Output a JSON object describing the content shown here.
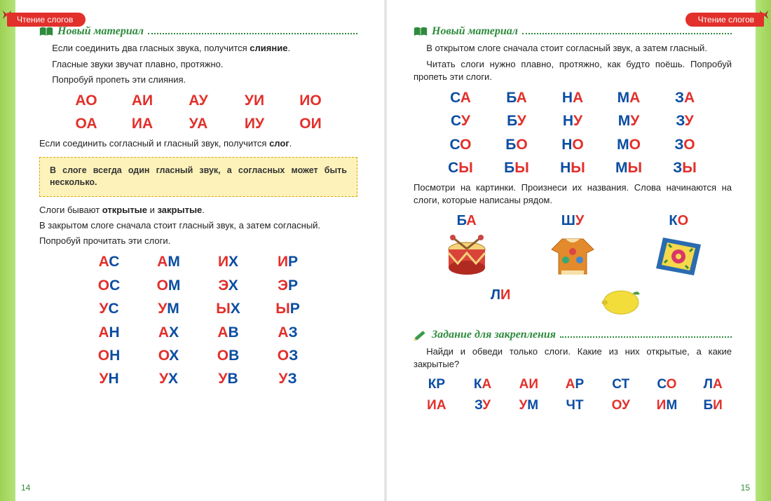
{
  "colors": {
    "vowel": "#e2302b",
    "consonant": "#0b4da2",
    "accent_green": "#2e8b3d",
    "edge_green": "#9cd154",
    "tab_red": "#e2302b",
    "rule_bg": "#fdf3ba",
    "rule_border": "#d7a60f"
  },
  "typography": {
    "body_fontsize": 13,
    "title_fontsize": 16,
    "syll_fontsize": 21,
    "syll_small_fontsize": 19
  },
  "tabs": {
    "left": "Чтение слогов",
    "right": "Чтение слогов"
  },
  "left": {
    "title1": "Новый материал",
    "p1": "Если соединить два гласных звука, получится ",
    "p1_bold": "слияние",
    "p1_end": ".",
    "p2": "Гласные звуки звучат плавно, протяжно.",
    "p3": "Попробуй пропеть эти слияния.",
    "grid1": {
      "cols": 5,
      "rows": 2,
      "cells": [
        [
          [
            "А",
            "v"
          ],
          [
            "О",
            "v"
          ]
        ],
        [
          [
            "А",
            "v"
          ],
          [
            "И",
            "v"
          ]
        ],
        [
          [
            "А",
            "v"
          ],
          [
            "У",
            "v"
          ]
        ],
        [
          [
            "У",
            "v"
          ],
          [
            "И",
            "v"
          ]
        ],
        [
          [
            "И",
            "v"
          ],
          [
            "О",
            "v"
          ]
        ],
        [
          [
            "О",
            "v"
          ],
          [
            "А",
            "v"
          ]
        ],
        [
          [
            "И",
            "v"
          ],
          [
            "А",
            "v"
          ]
        ],
        [
          [
            "У",
            "v"
          ],
          [
            "А",
            "v"
          ]
        ],
        [
          [
            "И",
            "v"
          ],
          [
            "У",
            "v"
          ]
        ],
        [
          [
            "О",
            "v"
          ],
          [
            "И",
            "v"
          ]
        ]
      ]
    },
    "p4a": "Если соединить согласный и гласный звук, получится ",
    "p4_bold": "слог",
    "p4b": ".",
    "rule": "В слоге всегда один гласный звук, а согласных может быть несколько.",
    "p5a": "Слоги бывают ",
    "p5_bold1": "открытые",
    "p5_mid": " и ",
    "p5_bold2": "закрытые",
    "p5b": ".",
    "p6": "В закрытом слоге сначала стоит гласный звук, а затем согласный.",
    "p7": "Попробуй прочитать эти слоги.",
    "grid2": {
      "cols": 4,
      "rows": 6,
      "cells": [
        [
          [
            "А",
            "v"
          ],
          [
            "С",
            "c"
          ]
        ],
        [
          [
            "А",
            "v"
          ],
          [
            "М",
            "c"
          ]
        ],
        [
          [
            "И",
            "v"
          ],
          [
            "Х",
            "c"
          ]
        ],
        [
          [
            "И",
            "v"
          ],
          [
            "Р",
            "c"
          ]
        ],
        [
          [
            "О",
            "v"
          ],
          [
            "С",
            "c"
          ]
        ],
        [
          [
            "О",
            "v"
          ],
          [
            "М",
            "c"
          ]
        ],
        [
          [
            "Э",
            "v"
          ],
          [
            "Х",
            "c"
          ]
        ],
        [
          [
            "Э",
            "v"
          ],
          [
            "Р",
            "c"
          ]
        ],
        [
          [
            "У",
            "v"
          ],
          [
            "С",
            "c"
          ]
        ],
        [
          [
            "У",
            "v"
          ],
          [
            "М",
            "c"
          ]
        ],
        [
          [
            "Ы",
            "v"
          ],
          [
            "Х",
            "c"
          ]
        ],
        [
          [
            "Ы",
            "v"
          ],
          [
            "Р",
            "c"
          ]
        ],
        [
          [
            "А",
            "v"
          ],
          [
            "Н",
            "c"
          ]
        ],
        [
          [
            "А",
            "v"
          ],
          [
            "Х",
            "c"
          ]
        ],
        [
          [
            "А",
            "v"
          ],
          [
            "В",
            "c"
          ]
        ],
        [
          [
            "А",
            "v"
          ],
          [
            "З",
            "c"
          ]
        ],
        [
          [
            "О",
            "v"
          ],
          [
            "Н",
            "c"
          ]
        ],
        [
          [
            "О",
            "v"
          ],
          [
            "Х",
            "c"
          ]
        ],
        [
          [
            "О",
            "v"
          ],
          [
            "В",
            "c"
          ]
        ],
        [
          [
            "О",
            "v"
          ],
          [
            "З",
            "c"
          ]
        ],
        [
          [
            "У",
            "v"
          ],
          [
            "Н",
            "c"
          ]
        ],
        [
          [
            "У",
            "v"
          ],
          [
            "Х",
            "c"
          ]
        ],
        [
          [
            "У",
            "v"
          ],
          [
            "В",
            "c"
          ]
        ],
        [
          [
            "У",
            "v"
          ],
          [
            "З",
            "c"
          ]
        ]
      ]
    },
    "pageNum": "14"
  },
  "right": {
    "title1": "Новый материал",
    "p1": "В открытом слоге сначала стоит согласный звук, а затем гласный.",
    "p2": "Читать слоги нужно плавно, протяжно, как будто поёшь. Попробуй пропеть эти слоги.",
    "grid1": {
      "cols": 5,
      "rows": 4,
      "cells": [
        [
          [
            "С",
            "c"
          ],
          [
            "А",
            "v"
          ]
        ],
        [
          [
            "Б",
            "c"
          ],
          [
            "А",
            "v"
          ]
        ],
        [
          [
            "Н",
            "c"
          ],
          [
            "А",
            "v"
          ]
        ],
        [
          [
            "М",
            "c"
          ],
          [
            "А",
            "v"
          ]
        ],
        [
          [
            "З",
            "c"
          ],
          [
            "А",
            "v"
          ]
        ],
        [
          [
            "С",
            "c"
          ],
          [
            "У",
            "v"
          ]
        ],
        [
          [
            "Б",
            "c"
          ],
          [
            "У",
            "v"
          ]
        ],
        [
          [
            "Н",
            "c"
          ],
          [
            "У",
            "v"
          ]
        ],
        [
          [
            "М",
            "c"
          ],
          [
            "У",
            "v"
          ]
        ],
        [
          [
            "З",
            "c"
          ],
          [
            "У",
            "v"
          ]
        ],
        [
          [
            "С",
            "c"
          ],
          [
            "О",
            "v"
          ]
        ],
        [
          [
            "Б",
            "c"
          ],
          [
            "О",
            "v"
          ]
        ],
        [
          [
            "Н",
            "c"
          ],
          [
            "О",
            "v"
          ]
        ],
        [
          [
            "М",
            "c"
          ],
          [
            "О",
            "v"
          ]
        ],
        [
          [
            "З",
            "c"
          ],
          [
            "О",
            "v"
          ]
        ],
        [
          [
            "С",
            "c"
          ],
          [
            "Ы",
            "v"
          ]
        ],
        [
          [
            "Б",
            "c"
          ],
          [
            "Ы",
            "v"
          ]
        ],
        [
          [
            "Н",
            "c"
          ],
          [
            "Ы",
            "v"
          ]
        ],
        [
          [
            "М",
            "c"
          ],
          [
            "Ы",
            "v"
          ]
        ],
        [
          [
            "З",
            "c"
          ],
          [
            "Ы",
            "v"
          ]
        ]
      ]
    },
    "p3": "Посмотри на картинки. Произнеси их названия. Слова начинаются на слоги, которые написаны рядом.",
    "pics": [
      {
        "label": [
          [
            "Б",
            "c"
          ],
          [
            "А",
            "v"
          ]
        ],
        "icon": "drum"
      },
      {
        "label": [
          [
            "Ш",
            "c"
          ],
          [
            "У",
            "v"
          ]
        ],
        "icon": "coat"
      },
      {
        "label": [
          [
            "К",
            "c"
          ],
          [
            "О",
            "v"
          ]
        ],
        "icon": "rug"
      },
      {
        "label": [
          [
            "Л",
            "c"
          ],
          [
            "И",
            "v"
          ]
        ],
        "icon": "lemon",
        "below": true
      }
    ],
    "title2": "Задание для закрепления",
    "p4": "Найди и обведи только слоги. Какие из них открытые, а какие закрытые?",
    "grid2": {
      "cols": 7,
      "rows": 2,
      "cells": [
        [
          [
            "К",
            "c"
          ],
          [
            "Р",
            "c"
          ]
        ],
        [
          [
            "К",
            "c"
          ],
          [
            "А",
            "v"
          ]
        ],
        [
          [
            "А",
            "v"
          ],
          [
            "И",
            "v"
          ]
        ],
        [
          [
            "А",
            "v"
          ],
          [
            "Р",
            "c"
          ]
        ],
        [
          [
            "С",
            "c"
          ],
          [
            "Т",
            "c"
          ]
        ],
        [
          [
            "С",
            "c"
          ],
          [
            "О",
            "v"
          ]
        ],
        [
          [
            "Л",
            "c"
          ],
          [
            "А",
            "v"
          ]
        ],
        [
          [
            "И",
            "v"
          ],
          [
            "А",
            "v"
          ]
        ],
        [
          [
            "З",
            "c"
          ],
          [
            "У",
            "v"
          ]
        ],
        [
          [
            "У",
            "v"
          ],
          [
            "М",
            "c"
          ]
        ],
        [
          [
            "Ч",
            "c"
          ],
          [
            "Т",
            "c"
          ]
        ],
        [
          [
            "О",
            "v"
          ],
          [
            "У",
            "v"
          ]
        ],
        [
          [
            "И",
            "v"
          ],
          [
            "М",
            "c"
          ]
        ],
        [
          [
            "Б",
            "c"
          ],
          [
            "И",
            "v"
          ]
        ]
      ]
    },
    "pageNum": "15"
  }
}
